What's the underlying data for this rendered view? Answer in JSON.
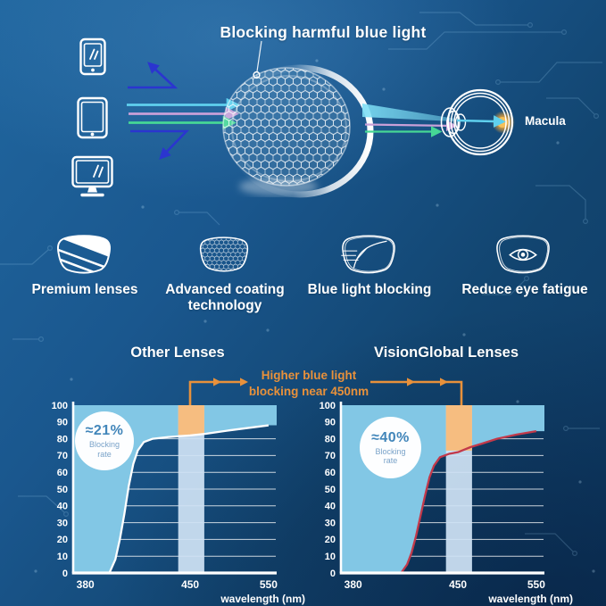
{
  "page": {
    "title": "Blocking harmful blue light",
    "macula_label": "Macula"
  },
  "features": {
    "items": [
      {
        "label": "Premium lenses",
        "icon": "premium-lens-icon"
      },
      {
        "label": "Advanced coating technology",
        "icon": "coating-lens-icon"
      },
      {
        "label": "Blue light blocking",
        "icon": "blocking-lens-icon"
      },
      {
        "label": "Reduce eye fatigue",
        "icon": "eye-lens-icon"
      }
    ]
  },
  "comparison": {
    "annotation_line1": "Higher blue light",
    "annotation_line2": "blocking near 450nm"
  },
  "colors": {
    "background_top": "#20669f",
    "background_bottom": "#0d3157",
    "chart_fill": "#82c7e5",
    "band": "#cfe2f4",
    "band_highlight": "#f6bd80",
    "accent_orange": "#e8913b",
    "ray_cyan": "#5fd0ee",
    "ray_pink": "#c9a0d8",
    "ray_green": "#46d795",
    "arrow_blue": "#2b35cf",
    "badge_text": "#4286ba",
    "macula_glow": "#f0a435",
    "grid_line": "#ffffff"
  },
  "chart_data": [
    {
      "type": "area",
      "title": "Other Lenses",
      "xlabel": "wavelength (nm)",
      "x_ticks": [
        380,
        450,
        550
      ],
      "y_ticks": [
        0,
        10,
        20,
        30,
        40,
        50,
        60,
        70,
        80,
        90,
        100
      ],
      "ylim": [
        0,
        100
      ],
      "grid": true,
      "legend": false,
      "badge_rate": "≈21%",
      "badge_label": "Blocking rate",
      "highlight_band_nm": [
        442,
        468
      ],
      "curve_color": "#ffffff",
      "series": [
        {
          "name": "light above blocking curve",
          "x": [
            380,
            396,
            400,
            403,
            406,
            409,
            412,
            415,
            419,
            425,
            435,
            450,
            470,
            500,
            550
          ],
          "values": [
            0,
            0,
            8,
            20,
            35,
            52,
            65,
            73,
            78,
            80,
            81,
            82,
            83,
            85,
            88
          ]
        }
      ]
    },
    {
      "type": "area",
      "title": "VisionGlobal Lenses",
      "xlabel": "wavelength (nm)",
      "x_ticks": [
        380,
        450,
        550
      ],
      "y_ticks": [
        0,
        10,
        20,
        30,
        40,
        50,
        60,
        70,
        80,
        90,
        100
      ],
      "ylim": [
        0,
        100
      ],
      "grid": true,
      "legend": false,
      "badge_rate": "≈40%",
      "badge_label": "Blocking rate",
      "highlight_band_nm": [
        442,
        468
      ],
      "curve_color": "#c2394a",
      "series": [
        {
          "name": "light above blocking curve",
          "x": [
            380,
            412,
            416,
            419,
            422,
            425,
            428,
            431,
            434,
            438,
            444,
            450,
            458,
            466,
            480,
            500,
            525,
            550
          ],
          "values": [
            0,
            0,
            5,
            12,
            22,
            34,
            46,
            57,
            64,
            69,
            71,
            72,
            73.5,
            75,
            77,
            80,
            82.5,
            84.5
          ]
        }
      ]
    }
  ]
}
